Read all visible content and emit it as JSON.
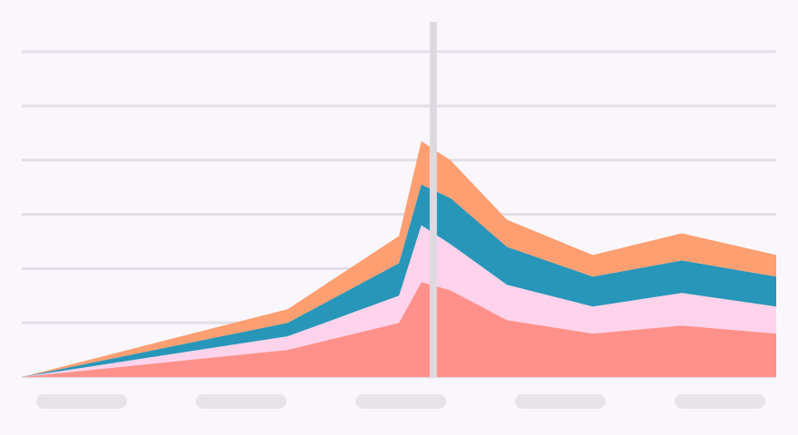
{
  "colors": {
    "background": "#f9f7fc",
    "gridline": "#e2e0e6",
    "cursor": "#dcdadf",
    "tick_placeholder": "#e6e4e9",
    "series": [
      "#ff918a",
      "#ffd3ec",
      "#2896b8",
      "#fe9f72"
    ]
  },
  "chart_data": {
    "type": "area",
    "stacked": true,
    "x": [
      0,
      1.55,
      2.2,
      2.33,
      2.5,
      2.83,
      3.33,
      3.85,
      4.4
    ],
    "series": [
      {
        "values": [
          0,
          1.0,
          2.0,
          3.5,
          3.2,
          2.1,
          1.6,
          1.9,
          1.6
        ]
      },
      {
        "values": [
          0,
          0.5,
          1.0,
          2.1,
          1.7,
          1.3,
          1.0,
          1.2,
          1.0
        ]
      },
      {
        "values": [
          0,
          0.5,
          1.2,
          1.5,
          1.7,
          1.4,
          1.1,
          1.2,
          1.1
        ]
      },
      {
        "values": [
          0,
          0.5,
          1.0,
          1.6,
          1.4,
          1.0,
          0.8,
          1.0,
          0.8
        ]
      }
    ],
    "xlim": [
      0,
      4.4
    ],
    "ylim": [
      0,
      12
    ],
    "y_gridlines": [
      0,
      2,
      4,
      6,
      8,
      10,
      12
    ],
    "cursor_x": 2.4,
    "x_tick_count": 5,
    "grid": true,
    "legend": "none"
  }
}
